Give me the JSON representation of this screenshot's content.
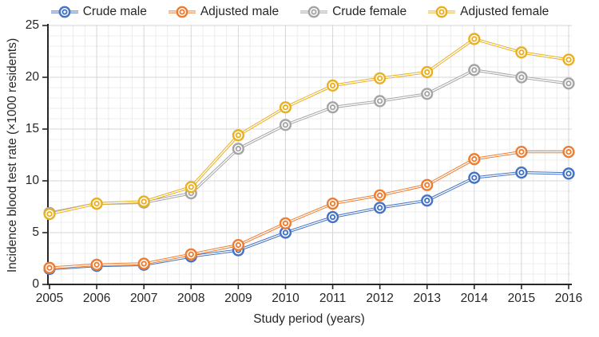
{
  "figure": {
    "background": "#ffffff",
    "text_color": "#262626",
    "axis_color": "#262626",
    "minor_grid_color": "#ececec",
    "major_grid_color": "#d6d6d6"
  },
  "chart_data": {
    "type": "line",
    "title": "",
    "xlabel": "Study period (years)",
    "ylabel": "Incidence blood test rate (×1000 residents)",
    "x": [
      2005,
      2006,
      2007,
      2008,
      2009,
      2010,
      2011,
      2012,
      2013,
      2014,
      2015,
      2016
    ],
    "ylim": [
      0,
      25
    ],
    "yticks": [
      0,
      5,
      10,
      15,
      20,
      25
    ],
    "grid": "minor horizontal every 1 unit, minor vertical quarterly; major gridlines at year ticks and every 5 units",
    "legend_position": "top",
    "marker": "double-circle-donut",
    "line_style": "double-line",
    "series": [
      {
        "name": "Crude male",
        "color": "#4472C4",
        "values": [
          1.5,
          1.8,
          1.9,
          2.7,
          3.3,
          5.0,
          6.5,
          7.4,
          8.1,
          10.3,
          10.8,
          10.7
        ]
      },
      {
        "name": "Adjusted male",
        "color": "#ED7D31",
        "values": [
          1.6,
          1.9,
          2.0,
          2.9,
          3.8,
          5.9,
          7.8,
          8.6,
          9.6,
          12.1,
          12.8,
          12.8
        ]
      },
      {
        "name": "Crude female",
        "color": "#A5A5A5",
        "values": [
          6.9,
          7.8,
          7.9,
          8.8,
          13.1,
          15.4,
          17.1,
          17.7,
          18.4,
          20.7,
          20.0,
          19.4
        ]
      },
      {
        "name": "Adjusted female",
        "color": "#E9B021",
        "values": [
          6.8,
          7.8,
          8.0,
          9.4,
          14.4,
          17.1,
          19.2,
          19.9,
          20.5,
          23.7,
          22.4,
          21.7
        ]
      }
    ]
  }
}
